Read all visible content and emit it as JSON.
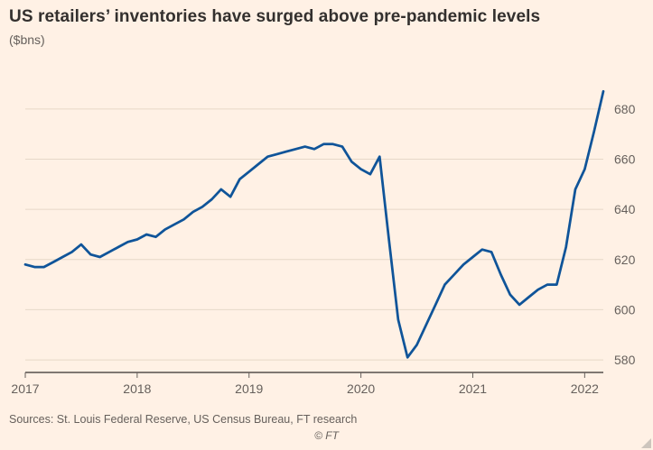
{
  "header": {
    "title": "US retailers’ inventories have surged above pre-pandemic levels",
    "subtitle": "($bns)"
  },
  "footer": {
    "sources": "Sources: St. Louis Federal Reserve, US Census Bureau, FT research",
    "copyright": "© FT"
  },
  "colors": {
    "background": "#FFF1E5",
    "line": "#0F5499",
    "grid": "#E6D8C8",
    "axis": "#33302E",
    "tick": "#66605C",
    "text": "#33302E",
    "muted": "#66605C"
  },
  "chart_data": {
    "type": "line",
    "title": "US retailers’ inventories have surged above pre-pandemic levels",
    "ylabel": "($bns)",
    "xlabel": "",
    "x_start_year": 2017,
    "frequency": "monthly",
    "x_ticks": [
      "2017",
      "2018",
      "2019",
      "2020",
      "2021",
      "2022"
    ],
    "x_tick_indices": [
      0,
      12,
      24,
      36,
      48,
      60
    ],
    "y_ticks": [
      580,
      600,
      620,
      640,
      660,
      680
    ],
    "ylim": [
      575,
      690
    ],
    "grid": "horizontal",
    "legend": false,
    "series": [
      {
        "name": "US retailers' inventories ($bns)",
        "values": [
          618,
          617,
          617,
          619,
          621,
          623,
          626,
          622,
          621,
          623,
          625,
          627,
          628,
          630,
          629,
          632,
          634,
          636,
          639,
          641,
          644,
          648,
          645,
          652,
          655,
          658,
          661,
          662,
          663,
          664,
          665,
          664,
          666,
          666,
          665,
          659,
          656,
          654,
          661,
          628,
          596,
          581,
          586,
          594,
          602,
          610,
          614,
          618,
          621,
          624,
          623,
          614,
          606,
          602,
          605,
          608,
          610,
          610,
          625,
          648,
          656,
          671,
          687
        ]
      }
    ]
  }
}
